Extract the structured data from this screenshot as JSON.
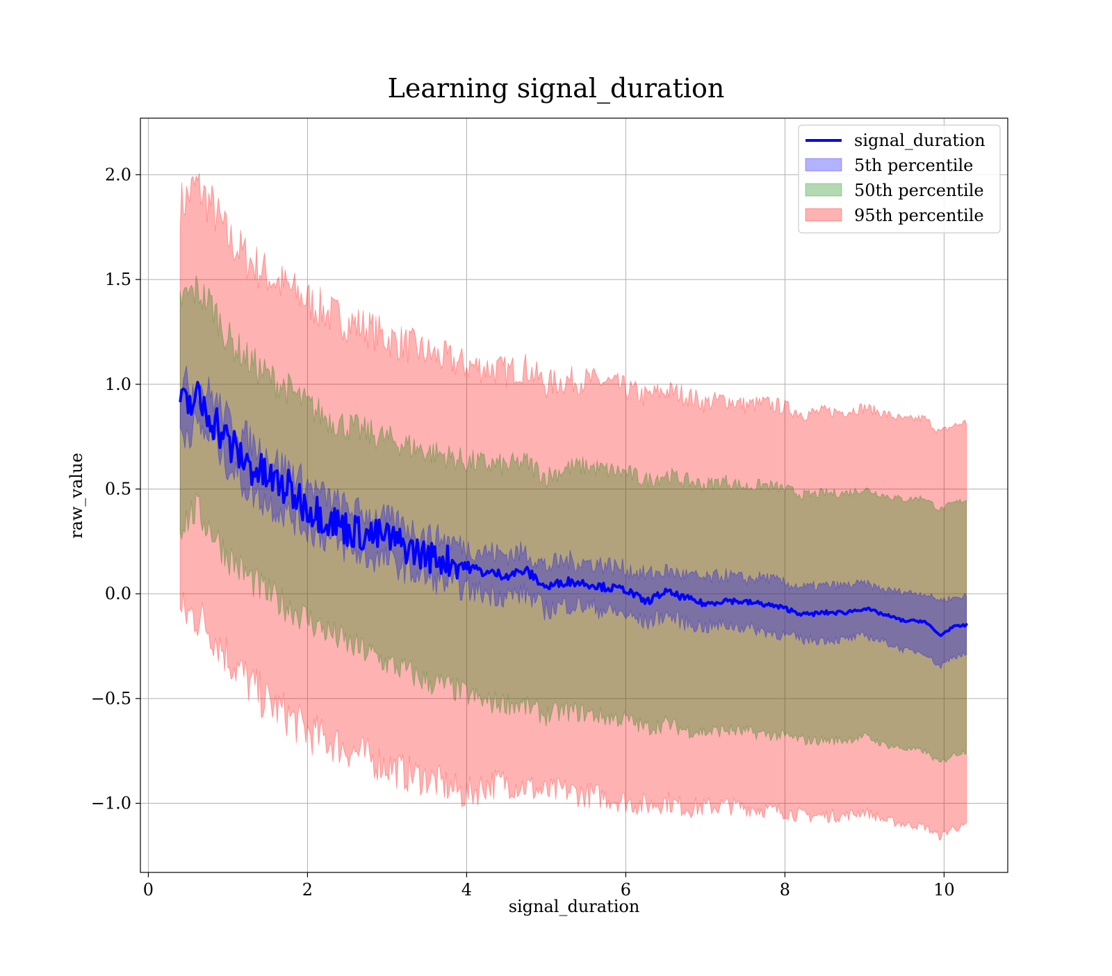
{
  "chart_data": {
    "type": "area",
    "title": "Learning signal_duration",
    "xlabel": "signal_duration",
    "ylabel": "raw_value",
    "xlim": [
      -0.1,
      10.8
    ],
    "ylim": [
      -1.33,
      2.27
    ],
    "xticks": [
      0,
      2,
      4,
      6,
      8,
      10
    ],
    "xtick_labels": [
      "0",
      "2",
      "4",
      "6",
      "8",
      "10"
    ],
    "yticks": [
      -1.0,
      -0.5,
      0.0,
      0.5,
      1.0,
      1.5,
      2.0
    ],
    "ytick_labels": [
      "−1.0",
      "−0.5",
      "0.0",
      "0.5",
      "1.0",
      "1.5",
      "2.0"
    ],
    "grid": true,
    "legend_position": "upper-right",
    "x": [
      0.4,
      0.6,
      0.8,
      1.0,
      1.25,
      1.5,
      1.75,
      2.0,
      2.25,
      2.5,
      2.75,
      3.0,
      3.25,
      3.5,
      3.75,
      4.0,
      4.25,
      4.5,
      4.75,
      5.0,
      5.25,
      5.5,
      5.75,
      6.0,
      6.25,
      6.5,
      6.75,
      7.0,
      7.25,
      7.5,
      7.75,
      8.0,
      8.25,
      8.5,
      8.75,
      9.0,
      9.25,
      9.5,
      9.75,
      9.95,
      10.1,
      10.28
    ],
    "series": [
      {
        "name": "signal_duration",
        "kind": "line",
        "color": "#0000ff",
        "values": [
          0.88,
          0.93,
          0.85,
          0.72,
          0.62,
          0.55,
          0.5,
          0.42,
          0.36,
          0.31,
          0.28,
          0.27,
          0.22,
          0.18,
          0.16,
          0.13,
          0.1,
          0.09,
          0.11,
          0.03,
          0.06,
          0.05,
          0.03,
          0.02,
          -0.04,
          0.01,
          -0.02,
          -0.05,
          -0.03,
          -0.04,
          -0.05,
          -0.07,
          -0.1,
          -0.09,
          -0.09,
          -0.07,
          -0.1,
          -0.13,
          -0.13,
          -0.2,
          -0.16,
          -0.15
        ]
      },
      {
        "name": "5th percentile",
        "kind": "band",
        "color": "#0000ff",
        "upper": [
          1.0,
          1.0,
          0.95,
          0.83,
          0.74,
          0.66,
          0.6,
          0.52,
          0.46,
          0.41,
          0.38,
          0.36,
          0.32,
          0.28,
          0.26,
          0.22,
          0.2,
          0.19,
          0.2,
          0.13,
          0.16,
          0.15,
          0.14,
          0.12,
          0.09,
          0.11,
          0.09,
          0.07,
          0.09,
          0.07,
          0.08,
          0.05,
          0.03,
          0.04,
          0.04,
          0.05,
          0.02,
          0.01,
          0.0,
          -0.03,
          -0.02,
          -0.01
        ],
        "lower": [
          0.76,
          0.8,
          0.74,
          0.62,
          0.5,
          0.43,
          0.38,
          0.31,
          0.26,
          0.21,
          0.17,
          0.16,
          0.11,
          0.07,
          0.05,
          0.02,
          0.0,
          -0.01,
          0.0,
          -0.08,
          -0.05,
          -0.06,
          -0.08,
          -0.1,
          -0.14,
          -0.1,
          -0.14,
          -0.16,
          -0.15,
          -0.16,
          -0.18,
          -0.2,
          -0.22,
          -0.22,
          -0.22,
          -0.2,
          -0.23,
          -0.27,
          -0.28,
          -0.35,
          -0.3,
          -0.29
        ]
      },
      {
        "name": "50th percentile",
        "kind": "band",
        "color": "#008000",
        "upper": [
          1.4,
          1.45,
          1.38,
          1.22,
          1.12,
          1.04,
          0.98,
          0.9,
          0.84,
          0.8,
          0.77,
          0.74,
          0.71,
          0.68,
          0.66,
          0.63,
          0.62,
          0.61,
          0.63,
          0.56,
          0.6,
          0.61,
          0.59,
          0.58,
          0.54,
          0.57,
          0.54,
          0.52,
          0.54,
          0.51,
          0.52,
          0.5,
          0.47,
          0.48,
          0.48,
          0.5,
          0.47,
          0.45,
          0.46,
          0.4,
          0.43,
          0.45
        ],
        "lower": [
          0.33,
          0.4,
          0.3,
          0.18,
          0.08,
          0.0,
          -0.06,
          -0.12,
          -0.18,
          -0.24,
          -0.28,
          -0.33,
          -0.37,
          -0.42,
          -0.44,
          -0.48,
          -0.52,
          -0.52,
          -0.54,
          -0.58,
          -0.56,
          -0.57,
          -0.59,
          -0.6,
          -0.64,
          -0.62,
          -0.65,
          -0.66,
          -0.65,
          -0.66,
          -0.67,
          -0.68,
          -0.7,
          -0.7,
          -0.7,
          -0.68,
          -0.72,
          -0.74,
          -0.75,
          -0.81,
          -0.77,
          -0.75
        ]
      },
      {
        "name": "95th percentile",
        "kind": "band",
        "color": "#ff0000",
        "upper": [
          1.85,
          1.95,
          1.85,
          1.7,
          1.6,
          1.52,
          1.46,
          1.4,
          1.34,
          1.3,
          1.27,
          1.22,
          1.19,
          1.15,
          1.12,
          1.09,
          1.08,
          1.06,
          1.08,
          1.0,
          1.02,
          1.02,
          1.01,
          0.98,
          0.94,
          0.97,
          0.95,
          0.91,
          0.93,
          0.9,
          0.91,
          0.89,
          0.86,
          0.87,
          0.87,
          0.89,
          0.86,
          0.83,
          0.84,
          0.77,
          0.8,
          0.82
        ],
        "lower": [
          -0.1,
          -0.1,
          -0.18,
          -0.3,
          -0.42,
          -0.52,
          -0.58,
          -0.66,
          -0.7,
          -0.74,
          -0.78,
          -0.82,
          -0.86,
          -0.88,
          -0.92,
          -0.96,
          -0.91,
          -0.9,
          -0.92,
          -0.95,
          -0.94,
          -0.96,
          -0.97,
          -0.99,
          -1.01,
          -0.99,
          -1.02,
          -1.02,
          -1.01,
          -1.02,
          -1.03,
          -1.04,
          -1.06,
          -1.06,
          -1.06,
          -1.04,
          -1.08,
          -1.1,
          -1.11,
          -1.16,
          -1.12,
          -1.11
        ]
      }
    ]
  }
}
